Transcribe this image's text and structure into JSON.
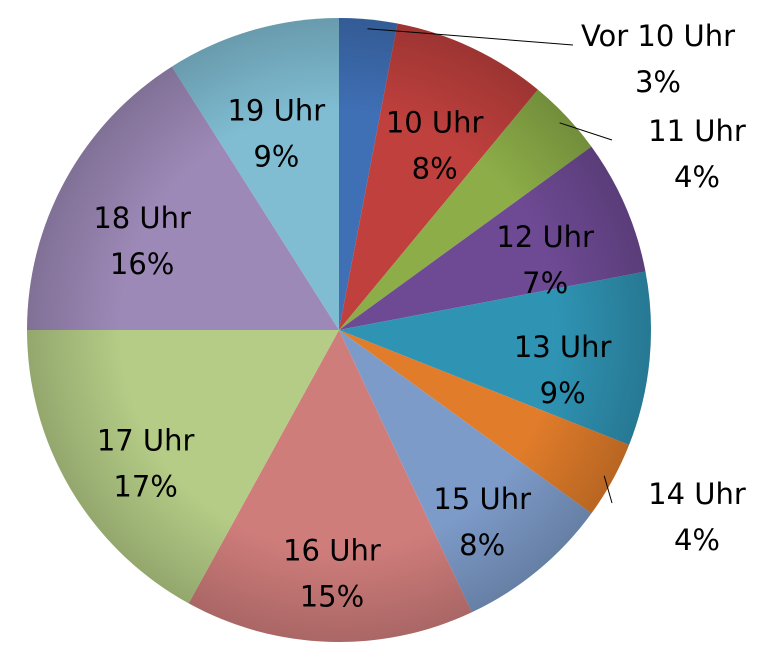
{
  "chart_data": {
    "type": "pie",
    "categories": [
      "Vor 10 Uhr",
      "10 Uhr",
      "11 Uhr",
      "12 Uhr",
      "13 Uhr",
      "14 Uhr",
      "15 Uhr",
      "16 Uhr",
      "17 Uhr",
      "18 Uhr",
      "19 Uhr"
    ],
    "values": [
      3,
      8,
      4,
      7,
      9,
      4,
      8,
      15,
      17,
      16,
      9
    ],
    "value_labels": [
      "3%",
      "8%",
      "4%",
      "7%",
      "9%",
      "4%",
      "8%",
      "15%",
      "17%",
      "16%",
      "9%"
    ],
    "colors": [
      "#3f6fb5",
      "#bf403d",
      "#8cad48",
      "#6e4a94",
      "#2f93b3",
      "#e07c2a",
      "#7d9bc9",
      "#cf7d7b",
      "#b4cc86",
      "#9d89b7",
      "#80bdd3"
    ]
  }
}
